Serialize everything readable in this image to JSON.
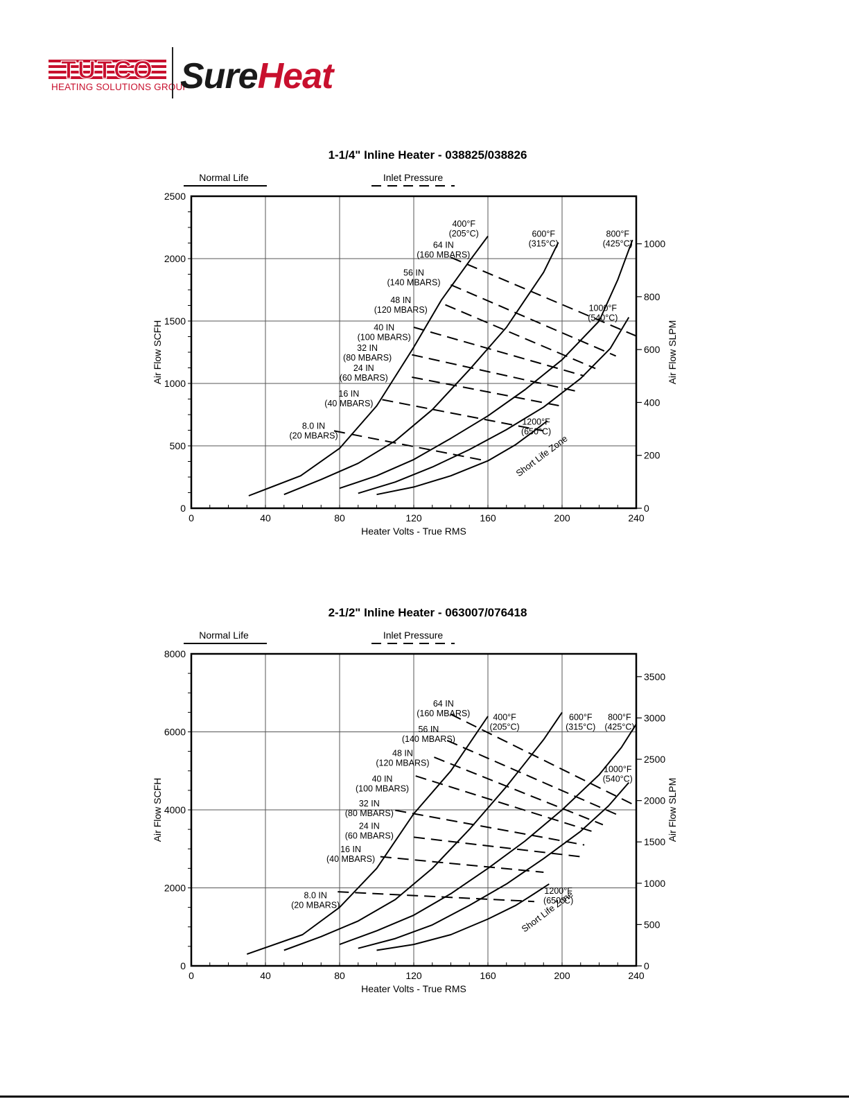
{
  "brand": {
    "name": "TUTCO",
    "subtitle": "HEATING SOLUTIONS GROUP",
    "product_a": "Sure",
    "product_b": "Heat",
    "colors": {
      "red": "#c8102e",
      "dark": "#1a1a1a"
    }
  },
  "chart_data": [
    {
      "type": "line",
      "title": "1-1/4\" Inline Heater - 038825/038826",
      "xlabel": "Heater Volts - True RMS",
      "ylabel": "Air Flow SCFH",
      "ylabel_right": "Air Flow SLPM",
      "xlim": [
        0,
        240
      ],
      "ylim": [
        0,
        2500
      ],
      "xticks": [
        0,
        40,
        80,
        120,
        160,
        200,
        240
      ],
      "yticks": [
        0,
        500,
        1000,
        1500,
        2000,
        2500
      ],
      "yticks_right": [
        0,
        200,
        400,
        600,
        800,
        1000
      ],
      "y_right_to_left_factor": 2.1189,
      "legend": {
        "solid": "Normal Life",
        "dashed": "Inlet Pressure"
      },
      "zone_label": "Short Life Zone",
      "zone_label_pos": [
        190,
        400
      ],
      "series": [
        {
          "name": "400°F",
          "label": [
            "400°F",
            "(205°C)"
          ],
          "label_at": [
            147,
            2255
          ],
          "x": [
            31,
            59,
            80,
            100,
            120,
            135,
            150,
            160
          ],
          "y": [
            100,
            260,
            480,
            820,
            1290,
            1670,
            1980,
            2180
          ]
        },
        {
          "name": "600°F",
          "label": [
            "600°F",
            "(315°C)"
          ],
          "label_at": [
            190,
            2175
          ],
          "x": [
            50,
            70,
            90,
            110,
            130,
            150,
            170,
            190,
            198
          ],
          "y": [
            110,
            230,
            360,
            540,
            790,
            1110,
            1450,
            1890,
            2130
          ]
        },
        {
          "name": "800°F",
          "label": [
            "800°F",
            "(425°C)"
          ],
          "label_at": [
            230,
            2175
          ],
          "x": [
            80,
            100,
            120,
            140,
            160,
            180,
            200,
            220,
            230,
            238
          ],
          "y": [
            160,
            260,
            390,
            560,
            740,
            950,
            1190,
            1500,
            1830,
            2150
          ]
        },
        {
          "name": "1000°F",
          "label": [
            "1000°F",
            "(540°C)"
          ],
          "label_at": [
            222,
            1580
          ],
          "x": [
            90,
            110,
            130,
            150,
            170,
            190,
            210,
            226,
            236
          ],
          "y": [
            120,
            210,
            330,
            470,
            630,
            810,
            1040,
            1280,
            1530
          ]
        },
        {
          "name": "1200°F",
          "label": [
            "1200°F",
            "(650°C)"
          ],
          "label_at": [
            186,
            670
          ],
          "x": [
            100,
            120,
            140,
            160,
            175,
            185,
            192
          ],
          "y": [
            110,
            170,
            260,
            380,
            510,
            620,
            700
          ]
        }
      ],
      "pressure_lines": [
        {
          "label": [
            "64 IN",
            "(160 MBARS)"
          ],
          "label_at": [
            136,
            2085
          ],
          "x": [
            140,
            240
          ],
          "y": [
            2010,
            1380
          ]
        },
        {
          "label": [
            "56 IN",
            "(140 MBARS)"
          ],
          "label_at": [
            120,
            1865
          ],
          "x": [
            140,
            229
          ],
          "y": [
            1790,
            1220
          ]
        },
        {
          "label": [
            "48 IN",
            "(120 MBARS)"
          ],
          "label_at": [
            113,
            1645
          ],
          "x": [
            137,
            218
          ],
          "y": [
            1630,
            1120
          ]
        },
        {
          "label": [
            "40 IN",
            "(100 MBARS)"
          ],
          "label_at": [
            104,
            1425
          ],
          "x": [
            120,
            212
          ],
          "y": [
            1450,
            1060
          ]
        },
        {
          "label": [
            "32 IN",
            "(80 MBARS)"
          ],
          "label_at": [
            95,
            1260
          ],
          "x": [
            119,
            210
          ],
          "y": [
            1230,
            930
          ]
        },
        {
          "label": [
            "24 IN",
            "(60 MBARS)"
          ],
          "label_at": [
            93,
            1100
          ],
          "x": [
            119,
            199
          ],
          "y": [
            1050,
            820
          ]
        },
        {
          "label": [
            "16 IN",
            "(40 MBARS)"
          ],
          "label_at": [
            85,
            895
          ],
          "x": [
            103,
            190
          ],
          "y": [
            870,
            620
          ]
        },
        {
          "label": [
            "8.0 IN",
            "(20 MBARS)"
          ],
          "label_at": [
            66,
            635
          ],
          "x": [
            77,
            159
          ],
          "y": [
            620,
            380
          ]
        }
      ]
    },
    {
      "type": "line",
      "title": "2-1/2\" Inline Heater - 063007/076418",
      "xlabel": "Heater Volts - True RMS",
      "ylabel": "Air Flow SCFH",
      "ylabel_right": "Air Flow SLPM",
      "xlim": [
        0,
        240
      ],
      "ylim": [
        0,
        8000
      ],
      "xticks": [
        0,
        40,
        80,
        120,
        160,
        200,
        240
      ],
      "yticks": [
        0,
        2000,
        4000,
        6000,
        8000
      ],
      "yticks_right": [
        0,
        500,
        1000,
        1500,
        2000,
        2500,
        3000,
        3500
      ],
      "y_right_to_left_factor": 2.1189,
      "legend": {
        "solid": "Normal Life",
        "dashed": "Inlet Pressure"
      },
      "zone_label": "Short Life Zone",
      "zone_label_pos": [
        193,
        1330
      ],
      "series": [
        {
          "name": "400°F",
          "label": [
            "400°F",
            "(205°C)"
          ],
          "label_at": [
            169,
            6300
          ],
          "label_anchor": "start",
          "x": [
            30,
            60,
            80,
            100,
            120,
            140,
            150,
            160
          ],
          "y": [
            300,
            800,
            1500,
            2500,
            3900,
            5000,
            5700,
            6400
          ]
        },
        {
          "name": "600°F",
          "label": [
            "600°F",
            "(315°C)"
          ],
          "label_at": [
            210,
            6300
          ],
          "x": [
            50,
            70,
            90,
            110,
            130,
            150,
            170,
            190,
            200
          ],
          "y": [
            400,
            750,
            1150,
            1700,
            2500,
            3500,
            4600,
            5800,
            6500
          ]
        },
        {
          "name": "800°F",
          "label": [
            "800°F",
            "(425°C)"
          ],
          "label_at": [
            231,
            6300
          ],
          "x": [
            80,
            100,
            120,
            140,
            160,
            180,
            200,
            220,
            232,
            240
          ],
          "y": [
            550,
            900,
            1300,
            1850,
            2500,
            3200,
            4000,
            4900,
            5600,
            6200
          ]
        },
        {
          "name": "1000°F",
          "label": [
            "1000°F",
            "(540°C)"
          ],
          "label_at": [
            230,
            4970
          ],
          "x": [
            90,
            110,
            130,
            150,
            170,
            190,
            210,
            225,
            236
          ],
          "y": [
            450,
            700,
            1050,
            1550,
            2100,
            2750,
            3450,
            4100,
            4700
          ]
        },
        {
          "name": "1200°F",
          "label": [
            "1200°F",
            "(650°C)"
          ],
          "label_at": [
            198,
            1850
          ],
          "x": [
            100,
            120,
            140,
            160,
            175,
            185,
            193
          ],
          "y": [
            400,
            550,
            800,
            1200,
            1550,
            1850,
            2100
          ]
        }
      ],
      "pressure_lines": [
        {
          "label": [
            "64 IN",
            "(160 MBARS)"
          ],
          "label_at": [
            136,
            6650
          ],
          "x": [
            140,
            240
          ],
          "y": [
            6450,
            4100
          ]
        },
        {
          "label": [
            "56 IN",
            "(140 MBARS)"
          ],
          "label_at": [
            128,
            5990
          ],
          "x": [
            138,
            230
          ],
          "y": [
            5780,
            3870
          ]
        },
        {
          "label": [
            "48 IN",
            "(120 MBARS)"
          ],
          "label_at": [
            114,
            5380
          ],
          "x": [
            131,
            222
          ],
          "y": [
            5350,
            3620
          ]
        },
        {
          "label": [
            "40 IN",
            "(100 MBARS)"
          ],
          "label_at": [
            103,
            4720
          ],
          "x": [
            121,
            218
          ],
          "y": [
            4870,
            3420
          ]
        },
        {
          "label": [
            "32 IN",
            "(80 MBARS)"
          ],
          "label_at": [
            96,
            4090
          ],
          "x": [
            110,
            212
          ],
          "y": [
            3990,
            3100
          ]
        },
        {
          "label": [
            "24 IN",
            "(60 MBARS)"
          ],
          "label_at": [
            96,
            3510
          ],
          "x": [
            120,
            210
          ],
          "y": [
            3300,
            2800
          ]
        },
        {
          "label": [
            "16 IN",
            "(40 MBARS)"
          ],
          "label_at": [
            86,
            2920
          ],
          "x": [
            102,
            190
          ],
          "y": [
            2800,
            2400
          ]
        },
        {
          "label": [
            "8.0 IN",
            "(20 MBARS)"
          ],
          "label_at": [
            67,
            1730
          ],
          "x": [
            79,
            185
          ],
          "y": [
            1900,
            1650
          ]
        }
      ]
    }
  ]
}
